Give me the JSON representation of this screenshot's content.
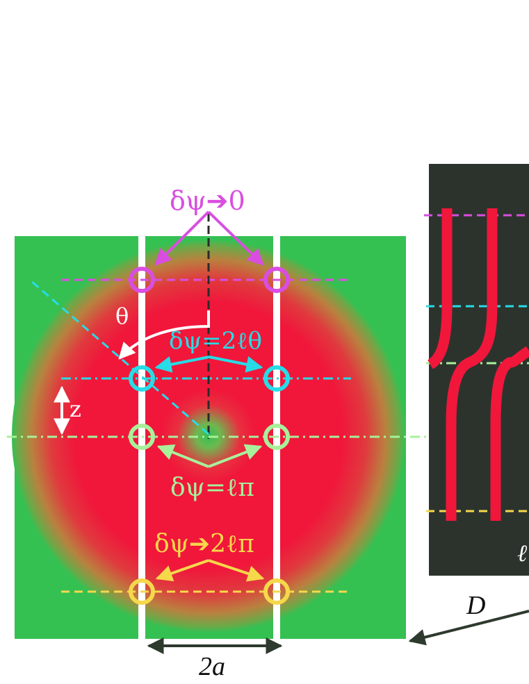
{
  "labels": {
    "magenta": "δψ➔0",
    "theta": "θ",
    "cyan": "δψ=2ℓθ",
    "z": "z",
    "green": "δψ=ℓπ",
    "yellow": "δψ➔2ℓπ",
    "width": "2a",
    "distance": "D",
    "ell": "ℓ"
  },
  "colors": {
    "background_green": "#35c052",
    "beam_red": "#f0173b",
    "slit_white": "#ffffff",
    "magenta": "#d94ee0",
    "cyan": "#27dce6",
    "light_green": "#a8f09a",
    "yellow": "#f6d84b",
    "screen_dark": "#2c332d",
    "fringe_red": "#f0173b",
    "arrow_dark": "#2f3a2f"
  }
}
